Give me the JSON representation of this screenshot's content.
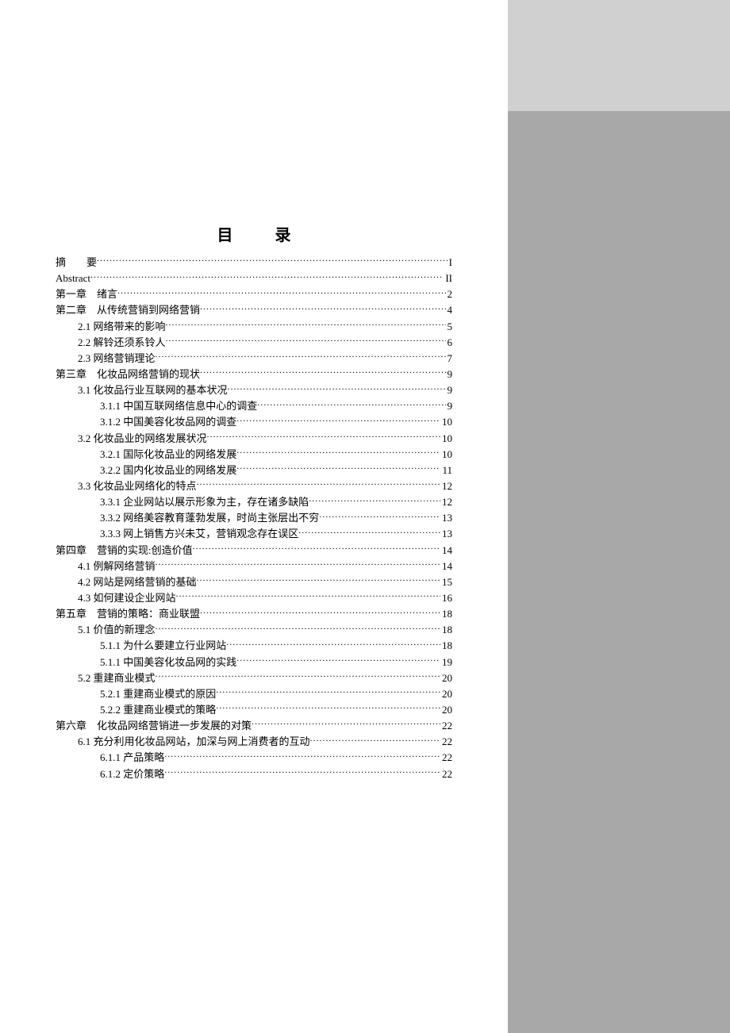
{
  "title": "目 录",
  "toc": [
    {
      "level": 0,
      "label": "摘　　要",
      "page": "I"
    },
    {
      "level": 0,
      "label": "Abstract",
      "page": "II"
    },
    {
      "level": 0,
      "label": "第一章　绪言",
      "page": "2"
    },
    {
      "level": 0,
      "label": "第二章　从传统营销到网络营销",
      "page": "4"
    },
    {
      "level": 1,
      "label": "2.1 网络带来的影响",
      "page": "5"
    },
    {
      "level": 1,
      "label": "2.2 解铃还须系铃人",
      "page": "6"
    },
    {
      "level": 1,
      "label": "2.3 网络营销理论",
      "page": "7"
    },
    {
      "level": 0,
      "label": "第三章　化妆品网络营销的现状",
      "page": "9"
    },
    {
      "level": 1,
      "label": "3.1 化妆品行业互联网的基本状况",
      "page": "9"
    },
    {
      "level": 2,
      "label": "3.1.1 中国互联网络信息中心的调查",
      "page": "9"
    },
    {
      "level": 2,
      "label": "3.1.2 中国美容化妆品网的调查",
      "page": "10"
    },
    {
      "level": 1,
      "label": "3.2 化妆品业的网络发展状况",
      "page": "10"
    },
    {
      "level": 2,
      "label": "3.2.1 国际化妆品业的网络发展",
      "page": "10"
    },
    {
      "level": 2,
      "label": "3.2.2 国内化妆品业的网络发展",
      "page": "11"
    },
    {
      "level": 1,
      "label": "3.3 化妆品业网络化的特点",
      "page": "12"
    },
    {
      "level": 2,
      "label": "3.3.1 企业网站以展示形象为主，存在诸多缺陷",
      "page": "12"
    },
    {
      "level": 2,
      "label": "3.3.2 网络美容教育蓬勃发展，时尚主张层出不穷",
      "page": "13"
    },
    {
      "level": 2,
      "label": "3.3.3 网上销售方兴未艾，营销观念存在误区",
      "page": "13"
    },
    {
      "level": 0,
      "label": "第四章　营销的实现:创造价值",
      "page": "14"
    },
    {
      "level": 1,
      "label": "4.1 例解网络营销",
      "page": "14"
    },
    {
      "level": 1,
      "label": "4.2 网站是网络营销的基础",
      "page": "15"
    },
    {
      "level": 1,
      "label": "4.3 如何建设企业网站",
      "page": "16"
    },
    {
      "level": 0,
      "label": "第五章　营销的策略：商业联盟",
      "page": "18"
    },
    {
      "level": 1,
      "label": "5.1 价值的新理念",
      "page": "18"
    },
    {
      "level": 2,
      "label": "5.1.1 为什么要建立行业网站",
      "page": "18"
    },
    {
      "level": 2,
      "label": "5.1.1 中国美容化妆品网的实践",
      "page": "19"
    },
    {
      "level": 1,
      "label": "5.2 重建商业模式",
      "page": "20"
    },
    {
      "level": 2,
      "label": "5.2.1 重建商业模式的原因",
      "page": "20"
    },
    {
      "level": 2,
      "label": "5.2.2 重建商业模式的策略",
      "page": "20"
    },
    {
      "level": 0,
      "label": "第六章　化妆品网络营销进一步发展的对策",
      "page": "22"
    },
    {
      "level": 1,
      "label": "6.1 充分利用化妆品网站，加深与网上消费者的互动",
      "page": "22"
    },
    {
      "level": 2,
      "label": "6.1.1 产品策略",
      "page": "22"
    },
    {
      "level": 2,
      "label": "6.1.2 定价策略",
      "page": "22"
    }
  ]
}
